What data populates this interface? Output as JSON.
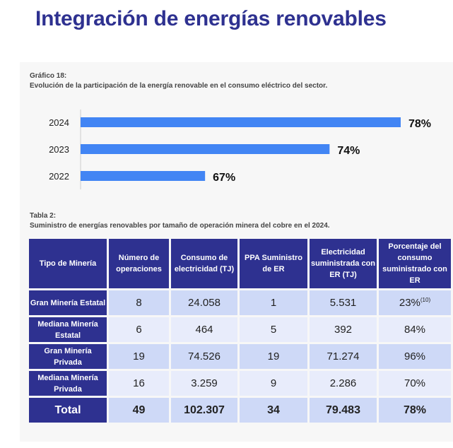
{
  "title": "Integración de energías renovables",
  "chart_caption": {
    "label": "Gráfico 18:",
    "text": "Evolución de la participación de la energía renovable en el consumo eléctrico del sector."
  },
  "chart_data": {
    "type": "bar",
    "orientation": "horizontal",
    "categories": [
      "2024",
      "2023",
      "2022"
    ],
    "values": [
      78,
      74,
      67
    ],
    "data_labels": [
      "78%",
      "74%",
      "67%"
    ],
    "xlim": [
      60,
      78
    ],
    "bar_color": "#4285f4",
    "grid": false
  },
  "table_caption": {
    "label": "Tabla 2:",
    "text": "Suministro de energías renovables por tamaño de operación minera del cobre en el 2024."
  },
  "table": {
    "headers": [
      "Tipo de Minería",
      "Número de operaciones",
      "Consumo de electricidad (TJ)",
      "PPA Suministro de ER",
      "Electricidad suministrada con ER (TJ)",
      "Porcentaje del consumo suministrado con ER"
    ],
    "rows": [
      [
        "Gran Minería Estatal",
        "8",
        "24.058",
        "1",
        "5.531",
        "23%"
      ],
      [
        "Mediana Minería Estatal",
        "6",
        "464",
        "5",
        "392",
        "84%"
      ],
      [
        "Gran Minería Privada",
        "19",
        "74.526",
        "19",
        "71.274",
        "96%"
      ],
      [
        "Mediana Minería Privada",
        "16",
        "3.259",
        "9",
        "2.286",
        "70%"
      ],
      [
        "Total",
        "49",
        "102.307",
        "34",
        "79.483",
        "78%"
      ]
    ],
    "footnote": "(10)"
  },
  "colors": {
    "brand": "#2e3190",
    "row_dark": "#ced9f7",
    "row_light": "#e8ecfb"
  }
}
